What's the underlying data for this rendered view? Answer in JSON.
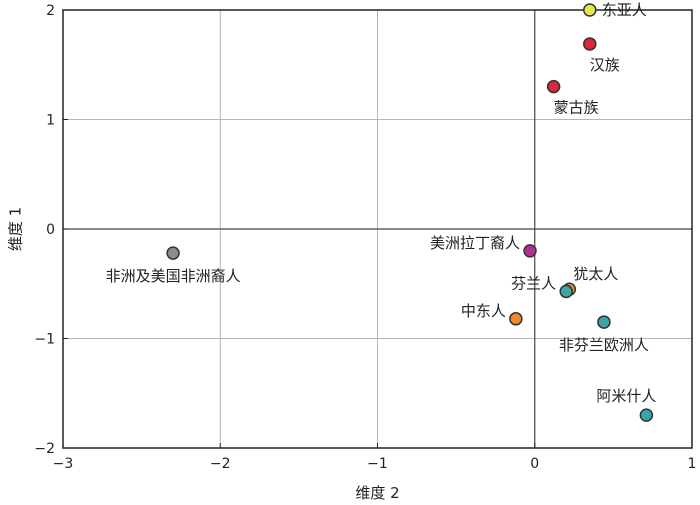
{
  "chart_data": {
    "type": "scatter",
    "xlabel": "维度 2",
    "ylabel": "维度 1",
    "xlim": [
      -3,
      1
    ],
    "ylim": [
      -2,
      2
    ],
    "x_ticks": [
      -3,
      -2,
      -1,
      0,
      1
    ],
    "y_ticks": [
      -2,
      -1,
      0,
      1,
      2
    ],
    "x_tick_labels": [
      "−3",
      "−2",
      "−1",
      "0",
      "1"
    ],
    "y_tick_labels": [
      "−2",
      "−1",
      "0",
      "1",
      "2"
    ],
    "grid": true,
    "zero_lines": true,
    "points": [
      {
        "label": "东亚人",
        "x": 0.35,
        "y": 2.0,
        "color": "#e8e84a",
        "label_pos": "right"
      },
      {
        "label": "汉族",
        "x": 0.35,
        "y": 1.69,
        "color": "#d9283a",
        "label_pos": "below-right"
      },
      {
        "label": "蒙古族",
        "x": 0.12,
        "y": 1.3,
        "color": "#d9283a",
        "label_pos": "below-right"
      },
      {
        "label": "美洲拉丁裔人",
        "x": -0.03,
        "y": -0.2,
        "color": "#b0308f",
        "label_pos": "left"
      },
      {
        "label": "非洲及美国非洲裔人",
        "x": -2.3,
        "y": -0.22,
        "color": "#8c8c8c",
        "label_pos": "below"
      },
      {
        "label": "犹太人",
        "x": 0.22,
        "y": -0.55,
        "color": "#f08a2c",
        "label_pos": "above-right"
      },
      {
        "label": "芬兰人",
        "x": 0.2,
        "y": -0.57,
        "color": "#3aa6a6",
        "label_pos": "left"
      },
      {
        "label": "中东人",
        "x": -0.12,
        "y": -0.82,
        "color": "#f08a2c",
        "label_pos": "left"
      },
      {
        "label": "非芬兰欧洲人",
        "x": 0.44,
        "y": -0.85,
        "color": "#3aa6a6",
        "label_pos": "below"
      },
      {
        "label": "阿米什人",
        "x": 0.71,
        "y": -1.7,
        "color": "#3aa6a6",
        "label_pos": "above"
      }
    ]
  }
}
